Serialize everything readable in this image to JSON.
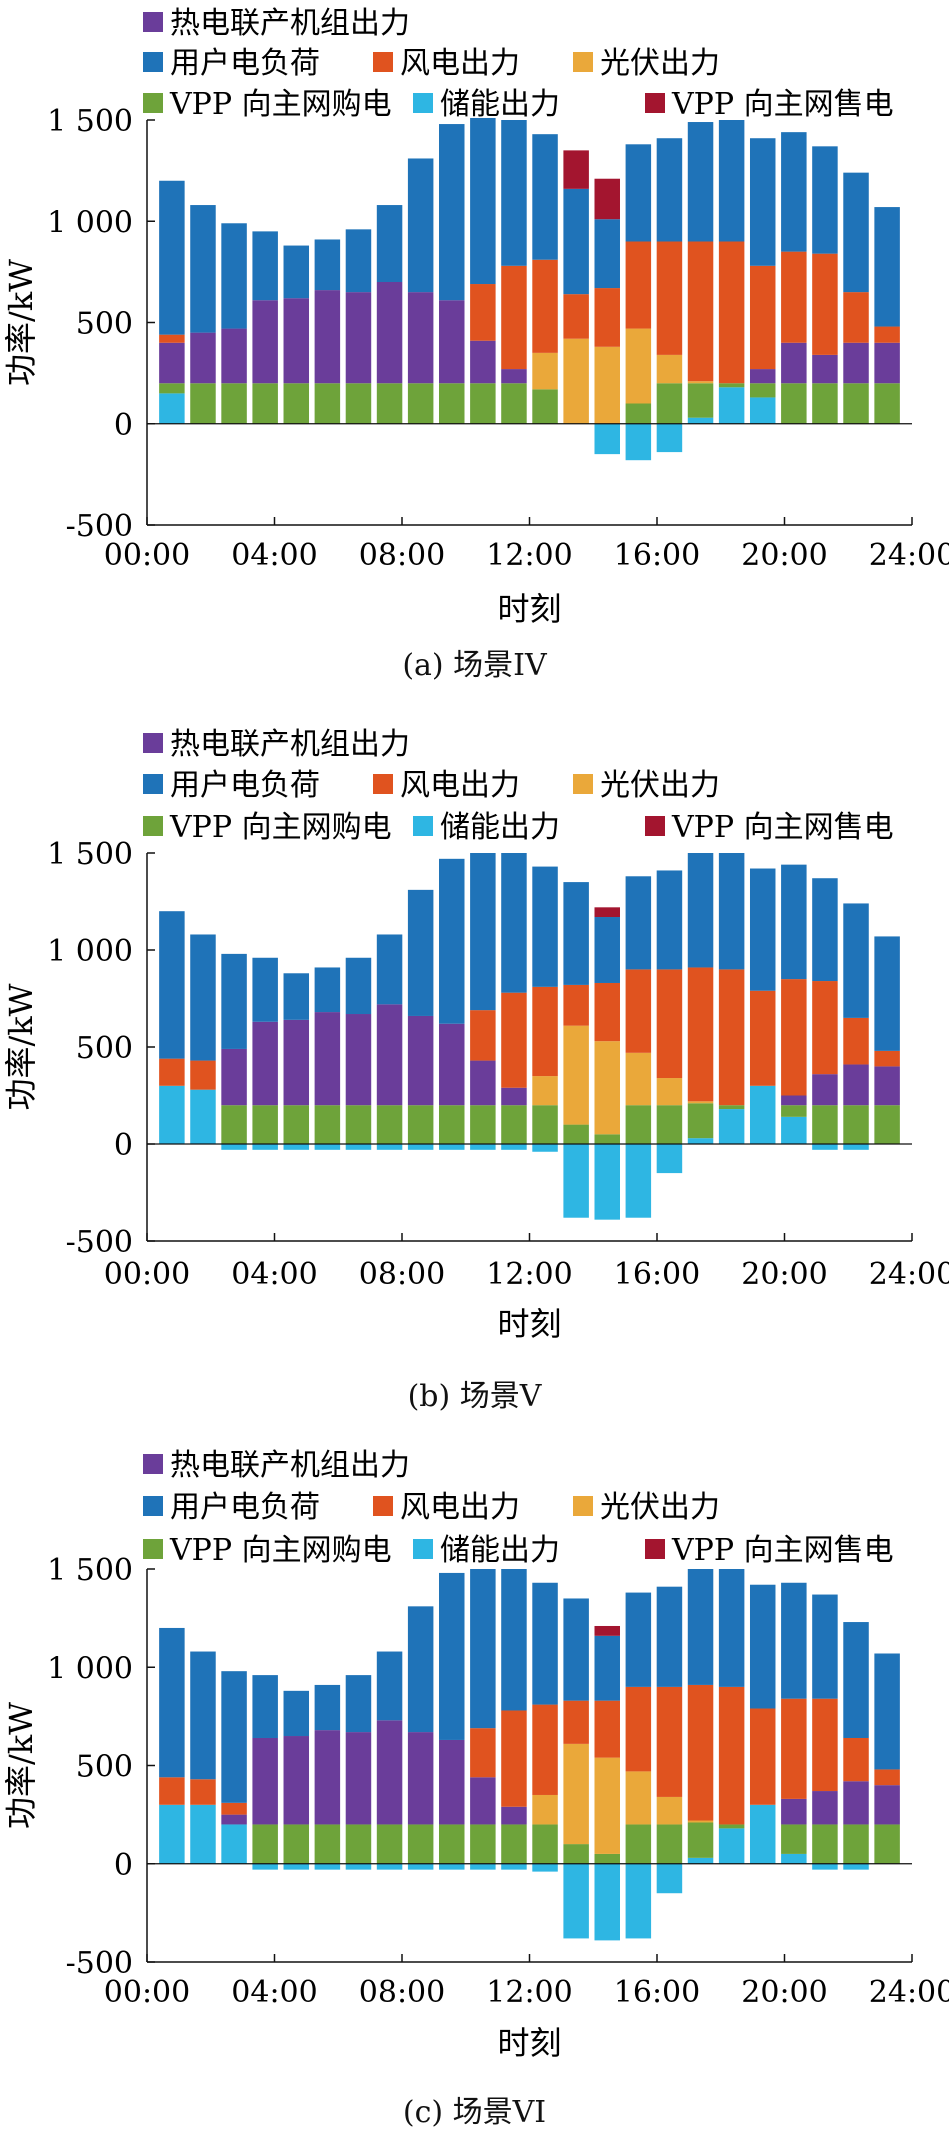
{
  "colors": {
    "chp": "#6a3d9a",
    "load": "#1f73b8",
    "wind": "#e0531f",
    "pv": "#eaa83a",
    "buy": "#6ea33a",
    "storage": "#2eb6e3",
    "sell": "#a3152f"
  },
  "legend": {
    "chp": "热电联产机组出力",
    "load": "用户电负荷",
    "wind": "风电出力",
    "pv": "光伏出力",
    "buy": "VPP 向主网购电",
    "storage": "储能出力",
    "sell": "VPP 向主网售电"
  },
  "chart_data": [
    {
      "type": "bar",
      "stacked": true,
      "caption": "(a) 场景IV",
      "xlabel": "时刻",
      "ylabel": "功率/kW",
      "xticks": [
        "00:00",
        "04:00",
        "08:00",
        "12:00",
        "16:00",
        "20:00",
        "24:00"
      ],
      "yticks": [
        "-500",
        "0",
        "500",
        "1 000",
        "1 500"
      ],
      "ylim": [
        -500,
        1500
      ],
      "categories": [
        1,
        2,
        3,
        4,
        5,
        6,
        7,
        8,
        9,
        10,
        11,
        12,
        13,
        14,
        15,
        16,
        17,
        18,
        19,
        20,
        21,
        22,
        23,
        24
      ],
      "series": [
        {
          "key": "storage",
          "values": [
            150,
            0,
            0,
            0,
            0,
            0,
            0,
            0,
            0,
            0,
            0,
            0,
            0,
            0,
            -150,
            -180,
            -140,
            30,
            180,
            130,
            0,
            0,
            0,
            0
          ]
        },
        {
          "key": "sell",
          "values": [
            0,
            0,
            0,
            0,
            0,
            0,
            0,
            0,
            0,
            0,
            0,
            0,
            0,
            190,
            200,
            0,
            0,
            0,
            0,
            0,
            0,
            0,
            0,
            0
          ]
        },
        {
          "key": "buy",
          "values": [
            50,
            200,
            200,
            200,
            200,
            200,
            200,
            200,
            200,
            200,
            200,
            200,
            170,
            0,
            0,
            100,
            200,
            170,
            20,
            70,
            200,
            200,
            200,
            200
          ]
        },
        {
          "key": "chp",
          "values": [
            200,
            250,
            270,
            410,
            420,
            460,
            450,
            500,
            450,
            410,
            210,
            70,
            0,
            0,
            0,
            0,
            0,
            0,
            0,
            70,
            200,
            140,
            200,
            200
          ]
        },
        {
          "key": "pv",
          "values": [
            0,
            0,
            0,
            0,
            0,
            0,
            0,
            0,
            0,
            0,
            0,
            0,
            180,
            420,
            380,
            370,
            140,
            10,
            0,
            0,
            0,
            0,
            0,
            0
          ]
        },
        {
          "key": "wind",
          "values": [
            40,
            0,
            0,
            0,
            0,
            0,
            0,
            0,
            0,
            0,
            280,
            510,
            460,
            220,
            290,
            430,
            560,
            690,
            700,
            510,
            450,
            500,
            250,
            80
          ]
        },
        {
          "key": "load",
          "values": [
            760,
            630,
            520,
            340,
            260,
            250,
            310,
            380,
            660,
            870,
            820,
            720,
            620,
            520,
            340,
            480,
            510,
            590,
            600,
            630,
            590,
            530,
            590,
            590
          ]
        }
      ]
    },
    {
      "type": "bar",
      "stacked": true,
      "caption": "(b) 场景V",
      "xlabel": "时刻",
      "ylabel": "功率/kW",
      "xticks": [
        "00:00",
        "04:00",
        "08:00",
        "12:00",
        "16:00",
        "20:00",
        "24:00"
      ],
      "yticks": [
        "-500",
        "0",
        "500",
        "1 000",
        "1 500"
      ],
      "ylim": [
        -500,
        1500
      ],
      "categories": [
        1,
        2,
        3,
        4,
        5,
        6,
        7,
        8,
        9,
        10,
        11,
        12,
        13,
        14,
        15,
        16,
        17,
        18,
        19,
        20,
        21,
        22,
        23,
        24
      ],
      "series": [
        {
          "key": "storage",
          "values": [
            300,
            280,
            -30,
            -30,
            -30,
            -30,
            -30,
            -30,
            -30,
            -30,
            -30,
            -30,
            -40,
            -380,
            -390,
            -380,
            -150,
            30,
            180,
            300,
            140,
            -30,
            -30,
            0
          ]
        },
        {
          "key": "sell",
          "values": [
            0,
            0,
            0,
            0,
            0,
            0,
            0,
            0,
            0,
            0,
            0,
            0,
            0,
            0,
            50,
            0,
            0,
            0,
            0,
            0,
            0,
            0,
            0,
            0
          ]
        },
        {
          "key": "buy",
          "values": [
            0,
            0,
            200,
            200,
            200,
            200,
            200,
            200,
            200,
            200,
            200,
            200,
            200,
            100,
            50,
            200,
            200,
            180,
            20,
            0,
            60,
            200,
            200,
            200
          ]
        },
        {
          "key": "chp",
          "values": [
            0,
            0,
            290,
            430,
            440,
            480,
            470,
            520,
            460,
            420,
            230,
            90,
            0,
            0,
            0,
            0,
            0,
            0,
            0,
            0,
            50,
            160,
            210,
            200
          ]
        },
        {
          "key": "pv",
          "values": [
            0,
            0,
            0,
            0,
            0,
            0,
            0,
            0,
            0,
            0,
            0,
            0,
            150,
            510,
            480,
            270,
            140,
            10,
            0,
            0,
            0,
            0,
            0,
            0
          ]
        },
        {
          "key": "wind",
          "values": [
            140,
            150,
            0,
            0,
            0,
            0,
            0,
            0,
            0,
            0,
            260,
            490,
            460,
            210,
            300,
            430,
            560,
            690,
            700,
            490,
            600,
            480,
            240,
            80
          ]
        },
        {
          "key": "load",
          "values": [
            760,
            650,
            490,
            330,
            240,
            230,
            290,
            360,
            650,
            850,
            810,
            720,
            620,
            530,
            340,
            480,
            510,
            590,
            600,
            630,
            590,
            530,
            590,
            590
          ]
        }
      ]
    },
    {
      "type": "bar",
      "stacked": true,
      "caption": "(c) 场景VI",
      "xlabel": "时刻",
      "ylabel": "功率/kW",
      "xticks": [
        "00:00",
        "04:00",
        "08:00",
        "12:00",
        "16:00",
        "20:00",
        "24:00"
      ],
      "yticks": [
        "-500",
        "0",
        "500",
        "1 000",
        "1 500"
      ],
      "ylim": [
        -500,
        1500
      ],
      "categories": [
        1,
        2,
        3,
        4,
        5,
        6,
        7,
        8,
        9,
        10,
        11,
        12,
        13,
        14,
        15,
        16,
        17,
        18,
        19,
        20,
        21,
        22,
        23,
        24
      ],
      "series": [
        {
          "key": "storage",
          "values": [
            300,
            300,
            200,
            -30,
            -30,
            -30,
            -30,
            -30,
            -30,
            -30,
            -30,
            -30,
            -40,
            -380,
            -390,
            -380,
            -150,
            30,
            180,
            300,
            50,
            -30,
            -30,
            0
          ]
        },
        {
          "key": "sell",
          "values": [
            0,
            0,
            0,
            0,
            0,
            0,
            0,
            0,
            0,
            0,
            0,
            0,
            0,
            0,
            50,
            0,
            0,
            0,
            0,
            0,
            0,
            0,
            0,
            0
          ]
        },
        {
          "key": "buy",
          "values": [
            0,
            0,
            0,
            200,
            200,
            200,
            200,
            200,
            200,
            200,
            200,
            200,
            200,
            100,
            50,
            200,
            200,
            180,
            20,
            0,
            150,
            200,
            200,
            200
          ]
        },
        {
          "key": "chp",
          "values": [
            0,
            0,
            50,
            440,
            450,
            480,
            470,
            530,
            470,
            430,
            240,
            90,
            0,
            0,
            0,
            0,
            0,
            0,
            0,
            0,
            130,
            170,
            220,
            200
          ]
        },
        {
          "key": "pv",
          "values": [
            0,
            0,
            0,
            0,
            0,
            0,
            0,
            0,
            0,
            0,
            0,
            0,
            150,
            510,
            490,
            270,
            140,
            10,
            0,
            0,
            0,
            0,
            0,
            0
          ]
        },
        {
          "key": "wind",
          "values": [
            140,
            130,
            60,
            0,
            0,
            0,
            0,
            0,
            0,
            0,
            250,
            490,
            460,
            220,
            290,
            430,
            560,
            690,
            700,
            490,
            510,
            470,
            220,
            80
          ]
        },
        {
          "key": "load",
          "values": [
            760,
            650,
            670,
            320,
            230,
            230,
            290,
            350,
            640,
            850,
            810,
            720,
            620,
            520,
            330,
            480,
            510,
            590,
            600,
            630,
            590,
            530,
            590,
            590
          ]
        }
      ]
    }
  ]
}
